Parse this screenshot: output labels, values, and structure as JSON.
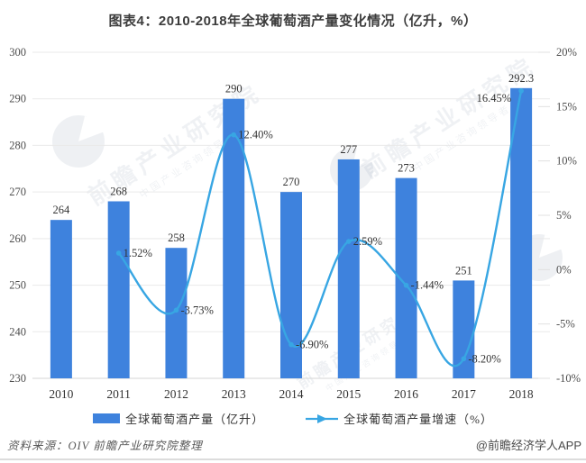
{
  "title": "图表4：2010-2018年全球葡萄酒产量变化情况（亿升，%）",
  "chart_data": {
    "type": "bar",
    "combo": "bar+line dual axis",
    "categories": [
      "2010",
      "2011",
      "2012",
      "2013",
      "2014",
      "2015",
      "2016",
      "2017",
      "2018"
    ],
    "series": [
      {
        "name": "全球葡萄酒产量（亿升）",
        "type": "bar",
        "axis": "left",
        "color": "#3E82DD",
        "values": [
          264,
          268,
          258,
          290,
          270,
          277,
          273,
          251,
          292.3
        ],
        "labels": [
          "264",
          "268",
          "258",
          "290",
          "270",
          "277",
          "273",
          "251",
          "292.3"
        ]
      },
      {
        "name": "全球葡萄酒产量增速（%）",
        "type": "line",
        "axis": "right",
        "color": "#38A6E3",
        "values": [
          null,
          1.52,
          -3.73,
          12.4,
          -6.9,
          2.59,
          -1.44,
          -8.2,
          16.45
        ],
        "labels": [
          null,
          "1.52%",
          "-3.73%",
          "12.40%",
          "-6.90%",
          "2.59%",
          "-1.44%",
          "-8.20%",
          "16.45%"
        ]
      }
    ],
    "left_axis": {
      "min": 230,
      "max": 300,
      "tick_values": [
        300,
        290,
        280,
        270,
        260,
        250,
        240,
        230
      ],
      "tick_labels": [
        "300",
        "290",
        "280",
        "270",
        "260",
        "250",
        "240",
        "230"
      ]
    },
    "right_axis": {
      "min": -10,
      "max": 20,
      "tick_values": [
        20,
        15,
        10,
        5,
        0,
        -5,
        -10
      ],
      "tick_labels": [
        "20%",
        "15%",
        "10%",
        "5%",
        "0%",
        "-5%",
        "-10%"
      ]
    },
    "grid": true,
    "legend_position": "bottom"
  },
  "footer": {
    "source": "资料来源：OIV  前瞻产业研究院整理",
    "credit": "@前瞻经济学人APP"
  },
  "watermark": {
    "brand": "前瞻产业研究院",
    "tagline": "中国产业咨询领导者"
  }
}
